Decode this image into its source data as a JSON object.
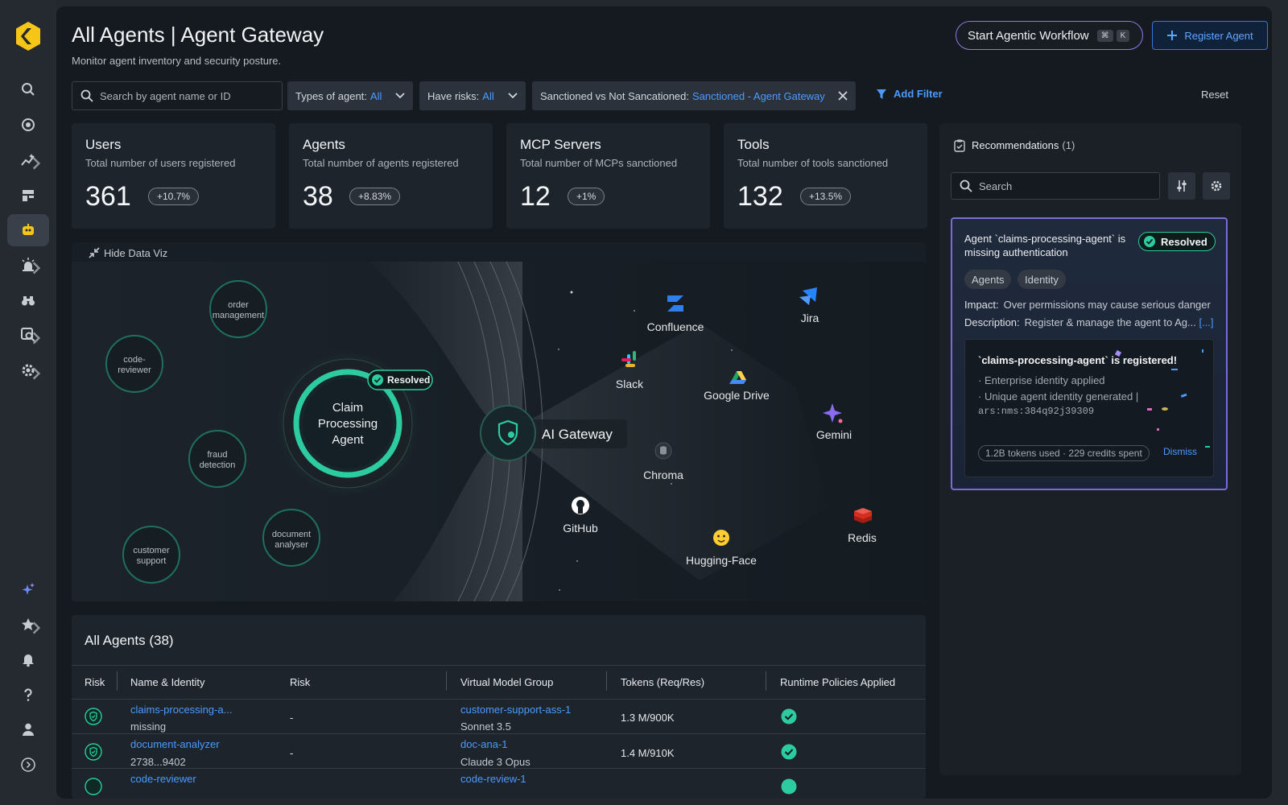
{
  "header": {
    "title": "All Agents | Agent Gateway",
    "subtitle": "Monitor agent inventory and security posture.",
    "workflow_button": "Start Agentic Workflow",
    "shortcut_keys": [
      "⌘",
      "K"
    ],
    "register_button": "Register Agent"
  },
  "filters": {
    "search_placeholder": "Search by agent name or ID",
    "types_label": "Types of agent:",
    "types_value": "All",
    "risks_label": "Have risks:",
    "risks_value": "All",
    "sanction_label": "Sanctioned vs Not Sancationed:",
    "sanction_value": "Sanctioned - Agent Gateway",
    "add_filter": "Add Filter",
    "reset": "Reset"
  },
  "stats": [
    {
      "title": "Users",
      "desc": "Total number of users  registered",
      "value": "361",
      "delta": "+10.7%"
    },
    {
      "title": "Agents",
      "desc": "Total number of agents registered",
      "value": "38",
      "delta": "+8.83%"
    },
    {
      "title": "MCP Servers",
      "desc": "Total number of MCPs sanctioned",
      "value": "12",
      "delta": "+1%"
    },
    {
      "title": "Tools",
      "desc": "Total number of tools sanctioned",
      "value": "132",
      "delta": "+13.5%"
    }
  ],
  "viz": {
    "hide_label": "Hide Data Viz",
    "agents": [
      {
        "line1": "order",
        "line2": "management"
      },
      {
        "line1": "code-",
        "line2": "reviewer"
      },
      {
        "line1": "fraud",
        "line2": "detection"
      },
      {
        "line1": "document",
        "line2": "analyser"
      },
      {
        "line1": "customer",
        "line2": "support"
      }
    ],
    "main_agent": {
      "line1": "Claim",
      "line2": "Processing",
      "line3": "Agent"
    },
    "resolved_label": "Resolved",
    "gateway_label": "AI Gateway",
    "tools": [
      {
        "name": "Confluence",
        "icon": "confluence-icon",
        "color": "#2d7ff0"
      },
      {
        "name": "Jira",
        "icon": "jira-icon",
        "color": "#2684ff"
      },
      {
        "name": "Slack",
        "icon": "slack-icon",
        "color": "#e01e5a"
      },
      {
        "name": "Google Drive",
        "icon": "google-drive-icon",
        "color": "#1fa463"
      },
      {
        "name": "Gemini",
        "icon": "gemini-icon",
        "color": "#8a6cf0"
      },
      {
        "name": "Chroma",
        "icon": "database-icon",
        "color": "#8a9099"
      },
      {
        "name": "GitHub",
        "icon": "github-icon",
        "color": "#ffffff"
      },
      {
        "name": "Hugging-Face",
        "icon": "hugging-face-icon",
        "color": "#ffcc33"
      },
      {
        "name": "Redis",
        "icon": "redis-icon",
        "color": "#d82c20"
      }
    ]
  },
  "recommendations": {
    "title": "Recommendations",
    "count": "(1)",
    "search_placeholder": "Search",
    "card": {
      "title": "Agent `claims-processing-agent` is missing authentication",
      "status": "Resolved",
      "tags": [
        "Agents",
        "Identity"
      ],
      "impact_label": "Impact:",
      "impact": "Over permissions may cause serious danger",
      "description_label": "Description:",
      "description": "Register & manage the agent to Ag...",
      "more": "[...]",
      "inner": {
        "title": "`claims-processing-agent` is registered!",
        "line1": "· Enterprise identity applied",
        "line2": "· Unique agent identity generated |",
        "line3": "ars:nms:384q92j39309",
        "usage": "1.2B tokens used · 229 credits spent",
        "dismiss": "Dismiss"
      }
    }
  },
  "agents_table": {
    "title": "All Agents (38)",
    "columns": [
      "Risk",
      "Name & Identity",
      "Risk",
      "Virtual Model Group",
      "Tokens (Req/Res)",
      "Runtime Policies Applied"
    ],
    "rows": [
      {
        "name": "claims-processing-a...",
        "identity": "missing",
        "risk": "-",
        "group": "customer-support-ass-1",
        "model": "Sonnet 3.5",
        "tokens": "1.3 M/900K"
      },
      {
        "name": "document-analyzer",
        "identity": "2738...9402",
        "risk": "-",
        "group": "doc-ana-1",
        "model": "Claude 3 Opus",
        "tokens": "1.4 M/910K"
      },
      {
        "name": "code-reviewer",
        "identity": "",
        "risk": "",
        "group": "code-review-1",
        "model": "",
        "tokens": ""
      }
    ]
  },
  "colors": {
    "accent": "#4b9bff",
    "teal": "#2dcba0",
    "purple": "#8e7be0",
    "logo": "#f5c518"
  }
}
